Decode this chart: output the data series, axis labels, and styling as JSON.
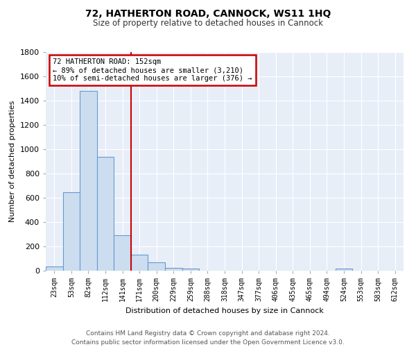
{
  "title": "72, HATHERTON ROAD, CANNOCK, WS11 1HQ",
  "subtitle": "Size of property relative to detached houses in Cannock",
  "xlabel": "Distribution of detached houses by size in Cannock",
  "ylabel": "Number of detached properties",
  "bin_labels": [
    "23sqm",
    "53sqm",
    "82sqm",
    "112sqm",
    "141sqm",
    "171sqm",
    "200sqm",
    "229sqm",
    "259sqm",
    "288sqm",
    "318sqm",
    "347sqm",
    "377sqm",
    "406sqm",
    "435sqm",
    "465sqm",
    "494sqm",
    "524sqm",
    "553sqm",
    "583sqm",
    "612sqm"
  ],
  "bar_heights": [
    35,
    648,
    1480,
    940,
    290,
    130,
    70,
    22,
    18,
    0,
    0,
    0,
    0,
    0,
    0,
    0,
    0,
    18,
    0,
    0,
    0
  ],
  "bar_color": "#ccddf0",
  "bar_edgecolor": "#6699cc",
  "vline_x": 4.5,
  "vline_color": "#cc0000",
  "annotation_line1": "72 HATHERTON ROAD: 152sqm",
  "annotation_line2": "← 89% of detached houses are smaller (3,210)",
  "annotation_line3": "10% of semi-detached houses are larger (376) →",
  "annotation_box_color": "#ffffff",
  "annotation_box_edgecolor": "#cc0000",
  "footer_text": "Contains HM Land Registry data © Crown copyright and database right 2024.\nContains public sector information licensed under the Open Government Licence v3.0.",
  "background_color": "#e8eef8",
  "ylim": [
    0,
    1800
  ],
  "yticks": [
    0,
    200,
    400,
    600,
    800,
    1000,
    1200,
    1400,
    1600,
    1800
  ]
}
